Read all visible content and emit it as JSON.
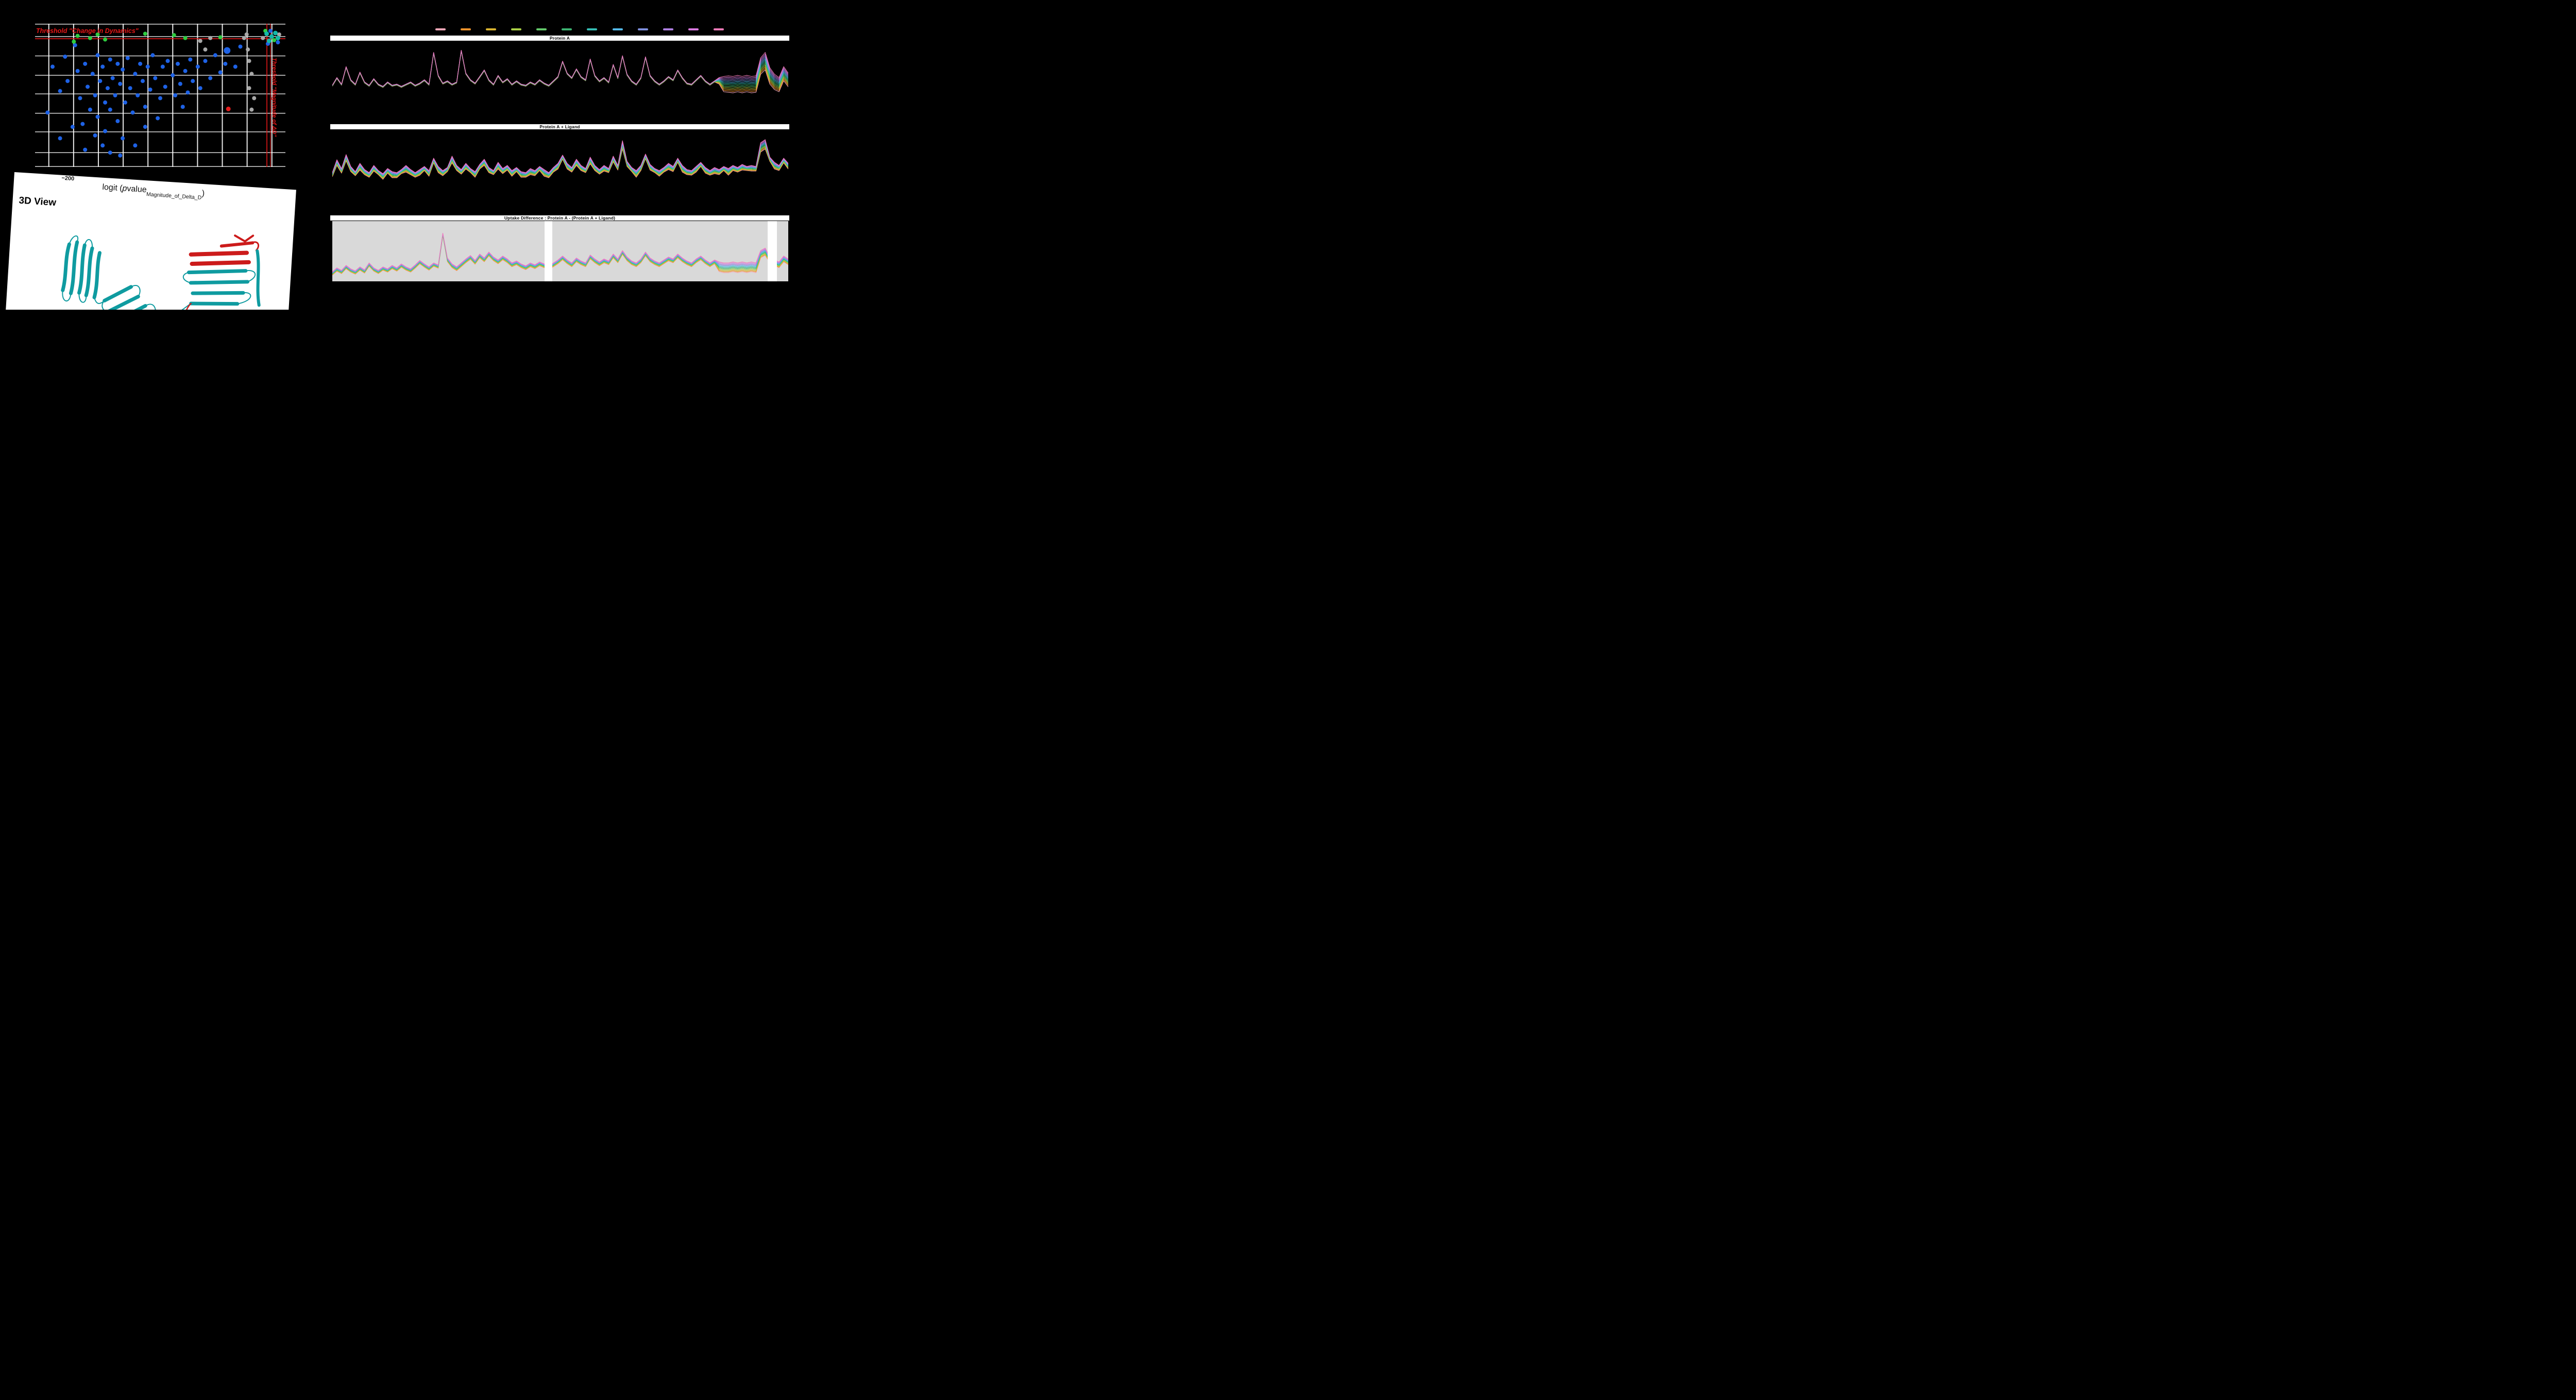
{
  "three_d": {
    "title": "3D View"
  },
  "legend": {
    "colors": [
      "#f5a8b8",
      "#f0932b",
      "#d9b430",
      "#aacf45",
      "#63c96a",
      "#3cb371",
      "#35bdb4",
      "#53b8e8",
      "#7e8fdd",
      "#ae7fe2",
      "#d97ae0",
      "#f07ab8"
    ]
  },
  "chart_data": [
    {
      "id": "volcano",
      "type": "scatter",
      "xlabel_parts": [
        "logit (",
        "p",
        "value",
        "Magnitude_of_Delta_D",
        ")"
      ],
      "x_ticks": [
        "−200"
      ],
      "thresholds": {
        "h_label": "Threshold \"Change in Dynamics\"",
        "v_label": "Threshold \"Magnitude of ΔD\"",
        "h_frac": 0.105,
        "v_frac": [
          0.926,
          0.94
        ]
      },
      "groups": [
        {
          "name": "no-significant-change",
          "color": "#1e62e6",
          "r": 4,
          "points": [
            [
              0.05,
              0.62
            ],
            [
              0.07,
              0.3
            ],
            [
              0.1,
              0.47
            ],
            [
              0.12,
              0.23
            ],
            [
              0.13,
              0.4
            ],
            [
              0.16,
              0.15
            ],
            [
              0.17,
              0.33
            ],
            [
              0.18,
              0.52
            ],
            [
              0.19,
              0.7
            ],
            [
              0.2,
              0.28
            ],
            [
              0.21,
              0.44
            ],
            [
              0.22,
              0.6
            ],
            [
              0.23,
              0.35
            ],
            [
              0.24,
              0.5
            ],
            [
              0.25,
              0.22
            ],
            [
              0.25,
              0.65
            ],
            [
              0.26,
              0.4
            ],
            [
              0.27,
              0.3
            ],
            [
              0.28,
              0.55
            ],
            [
              0.28,
              0.75
            ],
            [
              0.29,
              0.45
            ],
            [
              0.3,
              0.25
            ],
            [
              0.3,
              0.6
            ],
            [
              0.31,
              0.38
            ],
            [
              0.32,
              0.5
            ],
            [
              0.33,
              0.28
            ],
            [
              0.33,
              0.68
            ],
            [
              0.34,
              0.42
            ],
            [
              0.35,
              0.32
            ],
            [
              0.36,
              0.55
            ],
            [
              0.37,
              0.24
            ],
            [
              0.38,
              0.45
            ],
            [
              0.39,
              0.62
            ],
            [
              0.4,
              0.35
            ],
            [
              0.41,
              0.5
            ],
            [
              0.42,
              0.28
            ],
            [
              0.43,
              0.4
            ],
            [
              0.44,
              0.58
            ],
            [
              0.45,
              0.3
            ],
            [
              0.46,
              0.46
            ],
            [
              0.47,
              0.22
            ],
            [
              0.48,
              0.38
            ],
            [
              0.5,
              0.52
            ],
            [
              0.51,
              0.3
            ],
            [
              0.52,
              0.44
            ],
            [
              0.53,
              0.26
            ],
            [
              0.55,
              0.36
            ],
            [
              0.56,
              0.5
            ],
            [
              0.57,
              0.28
            ],
            [
              0.58,
              0.42
            ],
            [
              0.6,
              0.33
            ],
            [
              0.61,
              0.48
            ],
            [
              0.62,
              0.25
            ],
            [
              0.63,
              0.4
            ],
            [
              0.65,
              0.3
            ],
            [
              0.66,
              0.45
            ],
            [
              0.68,
              0.26
            ],
            [
              0.7,
              0.38
            ],
            [
              0.72,
              0.22
            ],
            [
              0.74,
              0.34
            ],
            [
              0.76,
              0.28
            ],
            [
              0.8,
              0.3
            ],
            [
              0.82,
              0.16
            ],
            [
              0.27,
              0.85
            ],
            [
              0.3,
              0.9
            ],
            [
              0.24,
              0.78
            ],
            [
              0.35,
              0.8
            ],
            [
              0.2,
              0.88
            ],
            [
              0.15,
              0.72
            ],
            [
              0.1,
              0.8
            ],
            [
              0.44,
              0.72
            ],
            [
              0.4,
              0.85
            ],
            [
              0.49,
              0.66
            ],
            [
              0.59,
              0.58
            ],
            [
              0.34,
              0.92
            ],
            [
              0.94,
              0.05
            ],
            [
              0.97,
              0.13
            ],
            [
              0.93,
              0.14
            ]
          ]
        },
        {
          "name": "large-blue",
          "color": "#1e62e6",
          "r": 6.5,
          "points": [
            [
              0.767,
              0.187
            ]
          ]
        },
        {
          "name": "excluded-gray",
          "color": "#a8a8a8",
          "r": 4,
          "points": [
            [
              0.66,
              0.12
            ],
            [
              0.68,
              0.18
            ],
            [
              0.7,
              0.1
            ],
            [
              0.835,
              0.1
            ],
            [
              0.85,
              0.18
            ],
            [
              0.855,
              0.26
            ],
            [
              0.865,
              0.35
            ],
            [
              0.855,
              0.45
            ],
            [
              0.875,
              0.52
            ],
            [
              0.865,
              0.6
            ],
            [
              0.845,
              0.075
            ],
            [
              0.91,
              0.1
            ],
            [
              0.975,
              0.075
            ]
          ]
        },
        {
          "name": "significant-green",
          "color": "#2ecc40",
          "r": 4,
          "points": [
            [
              0.155,
              0.125
            ],
            [
              0.17,
              0.085
            ],
            [
              0.22,
              0.1
            ],
            [
              0.25,
              0.075
            ],
            [
              0.28,
              0.11
            ],
            [
              0.44,
              0.07
            ],
            [
              0.555,
              0.08
            ],
            [
              0.6,
              0.1
            ],
            [
              0.74,
              0.095
            ],
            [
              0.92,
              0.05
            ],
            [
              0.955,
              0.115
            ]
          ]
        },
        {
          "name": "cluster-teal",
          "color": "#12b8a8",
          "r": 4.5,
          "points": [
            [
              0.925,
              0.07
            ],
            [
              0.945,
              0.09
            ],
            [
              0.96,
              0.065
            ],
            [
              0.97,
              0.1
            ],
            [
              0.935,
              0.12
            ]
          ]
        },
        {
          "name": "highlight-red",
          "color": "#e51c1c",
          "r": 4.5,
          "points": [
            [
              0.772,
              0.595
            ]
          ]
        }
      ]
    },
    {
      "id": "protein-a",
      "type": "line",
      "title": "Protein A",
      "n_series": 12,
      "series_offset_rule": "value[i][j] = base[j] - sep[j]*(1 - i/(n_series-1)); series colors = legend.colors",
      "base": [
        0.28,
        0.42,
        0.3,
        0.62,
        0.38,
        0.3,
        0.52,
        0.34,
        0.28,
        0.4,
        0.3,
        0.26,
        0.34,
        0.28,
        0.3,
        0.26,
        0.3,
        0.34,
        0.28,
        0.32,
        0.38,
        0.3,
        0.88,
        0.46,
        0.32,
        0.36,
        0.3,
        0.34,
        0.92,
        0.5,
        0.38,
        0.32,
        0.44,
        0.56,
        0.38,
        0.3,
        0.46,
        0.34,
        0.4,
        0.3,
        0.36,
        0.3,
        0.28,
        0.34,
        0.3,
        0.38,
        0.32,
        0.28,
        0.36,
        0.44,
        0.72,
        0.5,
        0.42,
        0.58,
        0.44,
        0.38,
        0.76,
        0.46,
        0.36,
        0.42,
        0.34,
        0.66,
        0.42,
        0.82,
        0.48,
        0.36,
        0.3,
        0.42,
        0.8,
        0.46,
        0.36,
        0.3,
        0.36,
        0.44,
        0.38,
        0.56,
        0.42,
        0.32,
        0.3,
        0.38,
        0.46,
        0.36,
        0.3,
        0.36,
        0.42,
        0.44,
        0.45,
        0.44,
        0.46,
        0.44,
        0.46,
        0.44,
        0.45,
        0.78,
        0.88,
        0.6,
        0.48,
        0.42,
        0.62,
        0.5
      ],
      "sep": [
        0.02,
        0.02,
        0.02,
        0.02,
        0.02,
        0.02,
        0.02,
        0.02,
        0.02,
        0.02,
        0.02,
        0.02,
        0.02,
        0.02,
        0.02,
        0.02,
        0.02,
        0.02,
        0.02,
        0.02,
        0.02,
        0.02,
        0.02,
        0.02,
        0.02,
        0.02,
        0.02,
        0.02,
        0.02,
        0.02,
        0.02,
        0.02,
        0.02,
        0.02,
        0.02,
        0.02,
        0.02,
        0.02,
        0.02,
        0.02,
        0.02,
        0.02,
        0.02,
        0.02,
        0.02,
        0.02,
        0.02,
        0.02,
        0.02,
        0.02,
        0.02,
        0.02,
        0.02,
        0.02,
        0.02,
        0.02,
        0.02,
        0.02,
        0.02,
        0.02,
        0.02,
        0.02,
        0.02,
        0.02,
        0.02,
        0.02,
        0.02,
        0.02,
        0.02,
        0.02,
        0.02,
        0.02,
        0.02,
        0.02,
        0.02,
        0.02,
        0.02,
        0.02,
        0.02,
        0.02,
        0.02,
        0.02,
        0.02,
        0.02,
        0.12,
        0.28,
        0.3,
        0.3,
        0.3,
        0.3,
        0.3,
        0.3,
        0.3,
        0.3,
        0.32,
        0.3,
        0.28,
        0.26,
        0.26,
        0.25
      ]
    },
    {
      "id": "protein-a-ligand",
      "type": "line",
      "title": "Protein A + Ligand",
      "n_series": 12,
      "series_offset_rule": "value[i][j] = base[j] - sep[j]*(1 - i/(n_series-1)); series colors = legend.colors",
      "base": [
        0.3,
        0.55,
        0.38,
        0.65,
        0.42,
        0.32,
        0.48,
        0.36,
        0.3,
        0.44,
        0.34,
        0.28,
        0.38,
        0.32,
        0.3,
        0.36,
        0.44,
        0.36,
        0.3,
        0.36,
        0.42,
        0.34,
        0.58,
        0.42,
        0.34,
        0.4,
        0.62,
        0.44,
        0.36,
        0.48,
        0.38,
        0.32,
        0.46,
        0.56,
        0.4,
        0.34,
        0.5,
        0.38,
        0.44,
        0.34,
        0.4,
        0.32,
        0.3,
        0.38,
        0.34,
        0.42,
        0.36,
        0.3,
        0.4,
        0.48,
        0.64,
        0.48,
        0.4,
        0.56,
        0.44,
        0.38,
        0.6,
        0.44,
        0.36,
        0.44,
        0.38,
        0.62,
        0.44,
        0.92,
        0.52,
        0.4,
        0.34,
        0.44,
        0.66,
        0.46,
        0.38,
        0.34,
        0.4,
        0.48,
        0.42,
        0.58,
        0.44,
        0.36,
        0.34,
        0.42,
        0.5,
        0.4,
        0.34,
        0.4,
        0.36,
        0.42,
        0.38,
        0.44,
        0.4,
        0.46,
        0.42,
        0.44,
        0.42,
        0.88,
        0.94,
        0.6,
        0.5,
        0.44,
        0.58,
        0.48
      ],
      "sep": [
        0.08,
        0.11,
        0.09,
        0.12,
        0.1,
        0.08,
        0.13,
        0.1,
        0.09,
        0.11,
        0.08,
        0.11,
        0.09,
        0.12,
        0.1,
        0.08,
        0.13,
        0.1,
        0.09,
        0.11,
        0.08,
        0.11,
        0.09,
        0.12,
        0.1,
        0.08,
        0.13,
        0.1,
        0.09,
        0.11,
        0.08,
        0.11,
        0.09,
        0.12,
        0.1,
        0.08,
        0.13,
        0.1,
        0.09,
        0.11,
        0.08,
        0.11,
        0.09,
        0.12,
        0.1,
        0.08,
        0.13,
        0.1,
        0.09,
        0.11,
        0.08,
        0.11,
        0.09,
        0.12,
        0.1,
        0.08,
        0.13,
        0.1,
        0.09,
        0.11,
        0.08,
        0.11,
        0.09,
        0.16,
        0.1,
        0.08,
        0.13,
        0.1,
        0.09,
        0.11,
        0.08,
        0.11,
        0.09,
        0.12,
        0.1,
        0.08,
        0.13,
        0.1,
        0.09,
        0.11,
        0.08,
        0.11,
        0.09,
        0.12,
        0.1,
        0.08,
        0.13,
        0.1,
        0.09,
        0.11,
        0.08,
        0.11,
        0.09,
        0.18,
        0.18,
        0.08,
        0.13,
        0.1,
        0.09,
        0.11
      ]
    },
    {
      "id": "uptake-difference",
      "type": "line",
      "title": "Uptake Difference : Protein A - (Protein A + Ligand)",
      "n_series": 12,
      "bg": "#d9d9d9",
      "gaps": [
        [
          0.466,
          0.483
        ],
        [
          0.955,
          0.975
        ]
      ],
      "series_offset_rule": "value[i][j] = base[j] - sep[j]*(1 - i/(n_series-1)); series colors = legend.colors",
      "base": [
        0.12,
        0.2,
        0.15,
        0.25,
        0.18,
        0.14,
        0.22,
        0.16,
        0.3,
        0.2,
        0.15,
        0.22,
        0.18,
        0.25,
        0.2,
        0.28,
        0.22,
        0.18,
        0.26,
        0.35,
        0.28,
        0.22,
        0.3,
        0.26,
        0.9,
        0.4,
        0.28,
        0.22,
        0.3,
        0.38,
        0.45,
        0.35,
        0.48,
        0.4,
        0.52,
        0.42,
        0.36,
        0.44,
        0.38,
        0.3,
        0.34,
        0.28,
        0.24,
        0.3,
        0.26,
        0.32,
        0.28,
        0.24,
        0.3,
        0.36,
        0.44,
        0.36,
        0.3,
        0.4,
        0.34,
        0.3,
        0.46,
        0.38,
        0.32,
        0.38,
        0.34,
        0.48,
        0.38,
        0.55,
        0.42,
        0.34,
        0.3,
        0.38,
        0.52,
        0.4,
        0.34,
        0.3,
        0.36,
        0.42,
        0.38,
        0.48,
        0.4,
        0.34,
        0.3,
        0.38,
        0.44,
        0.36,
        0.3,
        0.36,
        0.32,
        0.3,
        0.3,
        0.32,
        0.3,
        0.32,
        0.3,
        0.32,
        0.3,
        0.55,
        0.6,
        0.42,
        0.36,
        0.32,
        0.44,
        0.38
      ],
      "sep": [
        0.07,
        0.07,
        0.07,
        0.07,
        0.07,
        0.07,
        0.07,
        0.07,
        0.07,
        0.07,
        0.07,
        0.07,
        0.07,
        0.07,
        0.07,
        0.07,
        0.07,
        0.07,
        0.07,
        0.07,
        0.07,
        0.07,
        0.07,
        0.07,
        0.05,
        0.08,
        0.08,
        0.08,
        0.08,
        0.08,
        0.08,
        0.08,
        0.08,
        0.08,
        0.08,
        0.08,
        0.08,
        0.08,
        0.08,
        0.08,
        0.08,
        0.08,
        0.08,
        0.08,
        0.08,
        0.08,
        0.08,
        0.08,
        0.08,
        0.08,
        0.08,
        0.08,
        0.08,
        0.08,
        0.08,
        0.08,
        0.08,
        0.08,
        0.08,
        0.08,
        0.08,
        0.08,
        0.08,
        0.08,
        0.08,
        0.08,
        0.08,
        0.08,
        0.08,
        0.08,
        0.08,
        0.08,
        0.08,
        0.08,
        0.08,
        0.08,
        0.08,
        0.08,
        0.08,
        0.08,
        0.08,
        0.08,
        0.08,
        0.08,
        0.2,
        0.2,
        0.2,
        0.2,
        0.2,
        0.2,
        0.2,
        0.2,
        0.2,
        0.15,
        0.15,
        0.12,
        0.12,
        0.12,
        0.12,
        0.12
      ]
    }
  ]
}
